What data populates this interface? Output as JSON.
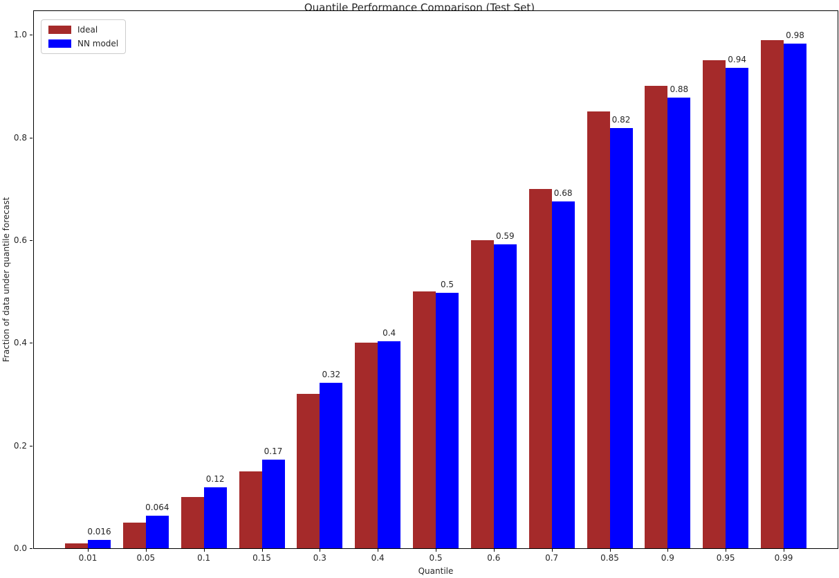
{
  "chart_data": {
    "type": "bar",
    "title": "Quantile Performance Comparison (Test Set)",
    "xlabel": "Quantile",
    "ylabel": "Fraction of data under quantile forecast",
    "categories": [
      "0.01",
      "0.05",
      "0.1",
      "0.15",
      "0.3",
      "0.4",
      "0.5",
      "0.6",
      "0.7",
      "0.85",
      "0.9",
      "0.95",
      "0.99"
    ],
    "series": [
      {
        "name": "Ideal",
        "color": "#A52A2A",
        "values": [
          0.01,
          0.05,
          0.1,
          0.15,
          0.3,
          0.4,
          0.5,
          0.6,
          0.7,
          0.85,
          0.9,
          0.95,
          0.99
        ]
      },
      {
        "name": "NN model",
        "color": "#0000FF",
        "values": [
          0.016,
          0.064,
          0.118,
          0.172,
          0.322,
          0.403,
          0.497,
          0.592,
          0.675,
          0.818,
          0.878,
          0.935,
          0.982
        ]
      }
    ],
    "bar_labels": [
      "0.016",
      "0.064",
      "0.12",
      "0.17",
      "0.32",
      "0.4",
      "0.5",
      "0.59",
      "0.68",
      "0.82",
      "0.88",
      "0.94",
      "0.98"
    ],
    "ytick_labels": [
      "0.0",
      "0.2",
      "0.4",
      "0.6",
      "0.8",
      "1.0"
    ],
    "yticks": [
      0.0,
      0.2,
      0.4,
      0.6,
      0.8,
      1.0
    ],
    "ylim": [
      0,
      1.046
    ],
    "legend_position": "upper left",
    "grid": false
  }
}
